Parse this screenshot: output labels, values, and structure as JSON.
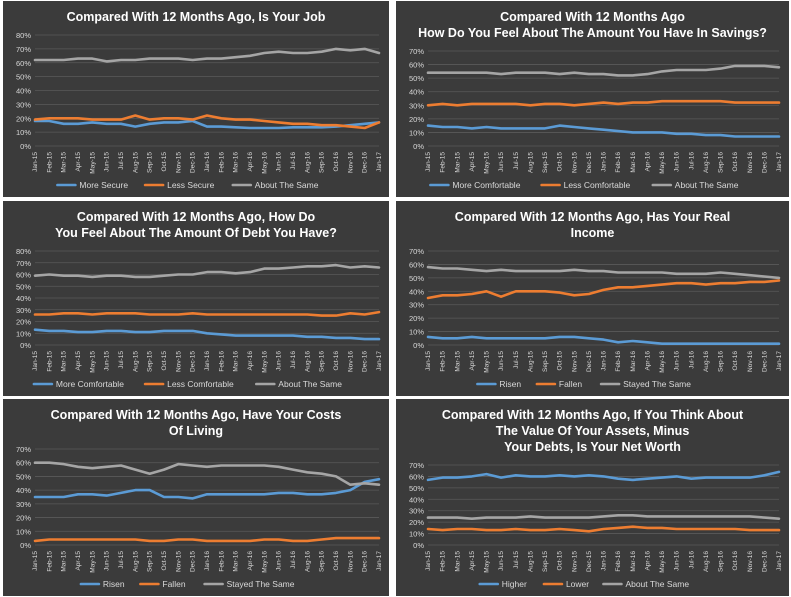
{
  "months": [
    "Jan-15",
    "Feb-15",
    "Mar-15",
    "Apr-15",
    "May-15",
    "Jun-15",
    "Jul-15",
    "Aug-15",
    "Sep-15",
    "Oct-15",
    "Nov-15",
    "Dec-15",
    "Jan-16",
    "Feb-16",
    "Mar-16",
    "Apr-16",
    "May-16",
    "Jun-16",
    "Jul-16",
    "Aug-16",
    "Sep-16",
    "Oct-16",
    "Nov-16",
    "Dec-16",
    "Jan-17"
  ],
  "colors": {
    "background": "#3b3b3b",
    "blue": "#5b9bd5",
    "orange": "#ed7d31",
    "gray": "#a5a5a5",
    "text": "#d9d9d9",
    "title": "#ffffff",
    "grid": "#5a5a5a"
  },
  "chart_data": [
    {
      "type": "line",
      "title": "Compared With 12 Months Ago, Is Your Job",
      "x": [
        "Jan-15",
        "Feb-15",
        "Mar-15",
        "Apr-15",
        "May-15",
        "Jun-15",
        "Jul-15",
        "Aug-15",
        "Sep-15",
        "Oct-15",
        "Nov-15",
        "Dec-15",
        "Jan-16",
        "Feb-16",
        "Mar-16",
        "Apr-16",
        "May-16",
        "Jun-16",
        "Jul-16",
        "Aug-16",
        "Sep-16",
        "Oct-16",
        "Nov-16",
        "Dec-16",
        "Jan-17"
      ],
      "ylim": [
        0,
        80
      ],
      "yticks": [
        "0%",
        "10%",
        "20%",
        "30%",
        "40%",
        "50%",
        "60%",
        "70%",
        "80%"
      ],
      "grid": true,
      "legend_position": "bottom",
      "series": [
        {
          "name": "More Secure",
          "color": "#5b9bd5",
          "values": [
            18,
            18,
            16,
            16,
            17,
            16,
            16,
            14,
            16,
            17,
            17,
            18,
            14,
            14,
            13.5,
            13,
            13,
            13,
            13.5,
            13.5,
            13.5,
            14,
            15,
            16,
            17
          ]
        },
        {
          "name": "Less Secure",
          "color": "#ed7d31",
          "values": [
            19,
            20,
            20,
            20,
            19,
            19,
            19,
            22,
            19,
            20,
            20,
            19,
            22,
            20,
            19,
            19,
            18,
            17,
            16,
            16,
            15,
            15,
            14,
            13,
            17
          ]
        },
        {
          "name": "About The Same",
          "color": "#a5a5a5",
          "values": [
            62,
            62,
            62,
            63,
            63,
            61,
            62,
            62,
            63,
            63,
            63,
            62,
            63,
            63,
            64,
            65,
            67,
            68,
            67,
            67,
            68,
            70,
            69,
            70,
            67
          ]
        }
      ]
    },
    {
      "type": "line",
      "title": "Compared With 12 Months Ago How Do You Feel About The Amount You Have In Savings?",
      "x": [
        "Jan-15",
        "Feb-15",
        "Mar-15",
        "Apr-15",
        "May-15",
        "Jun-15",
        "Jul-15",
        "Aug-15",
        "Sep-15",
        "Oct-15",
        "Nov-15",
        "Dec-15",
        "Jan-16",
        "Feb-16",
        "Mar-16",
        "Apr-16",
        "May-16",
        "Jun-16",
        "Jul-16",
        "Aug-16",
        "Sep-16",
        "Oct-16",
        "Nov-16",
        "Dec-16",
        "Jan-17"
      ],
      "ylim": [
        0,
        70
      ],
      "yticks": [
        "0%",
        "10%",
        "20%",
        "30%",
        "40%",
        "50%",
        "60%",
        "70%"
      ],
      "grid": true,
      "legend_position": "bottom",
      "series": [
        {
          "name": "More Comfortable",
          "color": "#5b9bd5",
          "values": [
            15,
            14,
            14,
            13,
            14,
            13,
            13,
            13,
            13,
            15,
            14,
            13,
            12,
            11,
            10,
            10,
            10,
            9,
            9,
            8,
            8,
            7,
            7,
            7,
            7
          ]
        },
        {
          "name": "Less Comfortable",
          "color": "#ed7d31",
          "values": [
            30,
            31,
            30,
            31,
            31,
            31,
            31,
            30,
            31,
            31,
            30,
            31,
            32,
            31,
            32,
            32,
            33,
            33,
            33,
            33,
            33,
            32,
            32,
            32,
            32
          ]
        },
        {
          "name": "About The Same",
          "color": "#a5a5a5",
          "values": [
            54,
            54,
            54,
            54,
            54,
            53,
            54,
            54,
            54,
            53,
            54,
            53,
            53,
            52,
            52,
            53,
            55,
            56,
            56,
            56,
            57,
            59,
            59,
            59,
            58
          ]
        }
      ]
    },
    {
      "type": "line",
      "title": "Compared With 12 Months Ago, How Do You Feel About The Amount Of Debt You Have?",
      "x": [
        "Jan-15",
        "Feb-15",
        "Mar-15",
        "Apr-15",
        "May-15",
        "Jun-15",
        "Jul-15",
        "Aug-15",
        "Sep-15",
        "Oct-15",
        "Nov-15",
        "Dec-15",
        "Jan-16",
        "Feb-16",
        "Mar-16",
        "Apr-16",
        "May-16",
        "Jun-16",
        "Jul-16",
        "Aug-16",
        "Sep-16",
        "Oct-16",
        "Nov-16",
        "Dec-16",
        "Jan-17"
      ],
      "ylim": [
        0,
        80
      ],
      "yticks": [
        "0%",
        "10%",
        "20%",
        "30%",
        "40%",
        "50%",
        "60%",
        "70%",
        "80%"
      ],
      "grid": true,
      "legend_position": "bottom",
      "series": [
        {
          "name": "More Comfortable",
          "color": "#5b9bd5",
          "values": [
            13,
            12,
            12,
            11,
            11,
            12,
            12,
            11,
            11,
            12,
            12,
            12,
            10,
            9,
            8,
            8,
            8,
            8,
            8,
            7,
            7,
            6,
            6,
            5,
            5
          ]
        },
        {
          "name": "Less Comfortable",
          "color": "#ed7d31",
          "values": [
            26,
            26,
            27,
            27,
            26,
            27,
            27,
            27,
            26,
            26,
            26,
            27,
            26,
            26,
            26,
            26,
            26,
            26,
            26,
            26,
            25,
            25,
            27,
            26,
            28
          ]
        },
        {
          "name": "About The Same",
          "color": "#a5a5a5",
          "values": [
            59,
            60,
            59,
            59,
            58,
            59,
            59,
            58,
            58,
            59,
            60,
            60,
            62,
            62,
            61,
            62,
            65,
            65,
            66,
            67,
            67,
            68,
            66,
            67,
            66
          ]
        }
      ]
    },
    {
      "type": "line",
      "title": "Compared With 12 Months Ago, Has Your Real Income",
      "x": [
        "Jan-15",
        "Feb-15",
        "Mar-15",
        "Apr-15",
        "May-15",
        "Jun-15",
        "Jul-15",
        "Aug-15",
        "Sep-15",
        "Oct-15",
        "Nov-15",
        "Dec-15",
        "Jan-16",
        "Feb-16",
        "Mar-16",
        "Apr-16",
        "May-16",
        "Jun-16",
        "Jul-16",
        "Aug-16",
        "Sep-16",
        "Oct-16",
        "Nov-16",
        "Dec-16",
        "Jan-17"
      ],
      "ylim": [
        0,
        70
      ],
      "yticks": [
        "0%",
        "10%",
        "20%",
        "30%",
        "40%",
        "50%",
        "60%",
        "70%"
      ],
      "grid": true,
      "legend_position": "bottom",
      "series": [
        {
          "name": "Risen",
          "color": "#5b9bd5",
          "values": [
            6,
            5,
            5,
            6,
            5,
            5,
            5,
            5,
            5,
            6,
            6,
            5,
            4,
            2,
            3,
            2,
            1,
            1,
            1,
            1,
            1,
            1,
            1,
            1,
            1
          ]
        },
        {
          "name": "Fallen",
          "color": "#ed7d31",
          "values": [
            35,
            37,
            37,
            38,
            40,
            36,
            40,
            40,
            40,
            39,
            37,
            38,
            41,
            43,
            43,
            44,
            45,
            46,
            46,
            45,
            46,
            46,
            47,
            47,
            48
          ]
        },
        {
          "name": "Stayed The Same",
          "color": "#a5a5a5",
          "values": [
            58,
            57,
            57,
            56,
            55,
            56,
            55,
            55,
            55,
            55,
            56,
            55,
            55,
            54,
            54,
            54,
            54,
            53,
            53,
            53,
            54,
            53,
            52,
            51,
            50
          ]
        }
      ]
    },
    {
      "type": "line",
      "title": "Compared With 12 Months Ago, Have Your Costs Of Living",
      "x": [
        "Jan-15",
        "Feb-15",
        "Mar-15",
        "Apr-15",
        "May-15",
        "Jun-15",
        "Jul-15",
        "Aug-15",
        "Sep-15",
        "Oct-15",
        "Nov-15",
        "Dec-15",
        "Jan-16",
        "Feb-16",
        "Mar-16",
        "Apr-16",
        "May-16",
        "Jun-16",
        "Jul-16",
        "Aug-16",
        "Sep-16",
        "Oct-16",
        "Nov-16",
        "Dec-16",
        "Jan-17"
      ],
      "ylim": [
        0,
        70
      ],
      "yticks": [
        "0%",
        "10%",
        "20%",
        "30%",
        "40%",
        "50%",
        "60%",
        "70%"
      ],
      "grid": true,
      "legend_position": "bottom",
      "series": [
        {
          "name": "Risen",
          "color": "#5b9bd5",
          "values": [
            35,
            35,
            35,
            37,
            37,
            36,
            38,
            40,
            40,
            35,
            35,
            34,
            37,
            37,
            37,
            37,
            37,
            38,
            38,
            37,
            37,
            38,
            40,
            46,
            48
          ]
        },
        {
          "name": "Fallen",
          "color": "#ed7d31",
          "values": [
            3,
            4,
            4,
            4,
            4,
            4,
            4,
            4,
            3,
            3,
            4,
            4,
            3,
            3,
            3,
            3,
            4,
            4,
            3,
            3,
            4,
            5,
            5,
            5,
            5
          ]
        },
        {
          "name": "Stayed The Same",
          "color": "#a5a5a5",
          "values": [
            60,
            60,
            59,
            57,
            56,
            57,
            58,
            55,
            52,
            55,
            59,
            58,
            57,
            58,
            58,
            58,
            58,
            57,
            55,
            53,
            52,
            50,
            44,
            45,
            44
          ]
        }
      ]
    },
    {
      "type": "line",
      "title": "Compared With 12 Months Ago, If You Think About The Value Of Your Assets, Minus Your Debts, Is Your Net Worth",
      "x": [
        "Jan-15",
        "Feb-15",
        "Mar-15",
        "Apr-15",
        "May-15",
        "Jun-15",
        "Jul-15",
        "Aug-15",
        "Sep-15",
        "Oct-15",
        "Nov-15",
        "Dec-15",
        "Jan-16",
        "Feb-16",
        "Mar-16",
        "Apr-16",
        "May-16",
        "Jun-16",
        "Jul-16",
        "Aug-16",
        "Sep-16",
        "Oct-16",
        "Nov-16",
        "Dec-16",
        "Jan-17"
      ],
      "ylim": [
        0,
        70
      ],
      "yticks": [
        "0%",
        "10%",
        "20%",
        "30%",
        "40%",
        "50%",
        "60%",
        "70%"
      ],
      "grid": true,
      "legend_position": "bottom",
      "series": [
        {
          "name": "Higher",
          "color": "#5b9bd5",
          "values": [
            57,
            59,
            59,
            60,
            62,
            59,
            61,
            60,
            60,
            61,
            60,
            61,
            60,
            58,
            57,
            58,
            59,
            60,
            58,
            59,
            59,
            59,
            59,
            61,
            64
          ]
        },
        {
          "name": "Lower",
          "color": "#ed7d31",
          "values": [
            14,
            13,
            14,
            14,
            13,
            13,
            14,
            13,
            13,
            14,
            13,
            12,
            14,
            15,
            16,
            15,
            15,
            14,
            14,
            14,
            14,
            14,
            13,
            13,
            13
          ]
        },
        {
          "name": "About The Same",
          "color": "#a5a5a5",
          "values": [
            24,
            24,
            24,
            23,
            24,
            24,
            24,
            25,
            24,
            24,
            24,
            24,
            25,
            26,
            26,
            25,
            25,
            25,
            25,
            25,
            25,
            25,
            25,
            24,
            23
          ]
        }
      ]
    }
  ]
}
